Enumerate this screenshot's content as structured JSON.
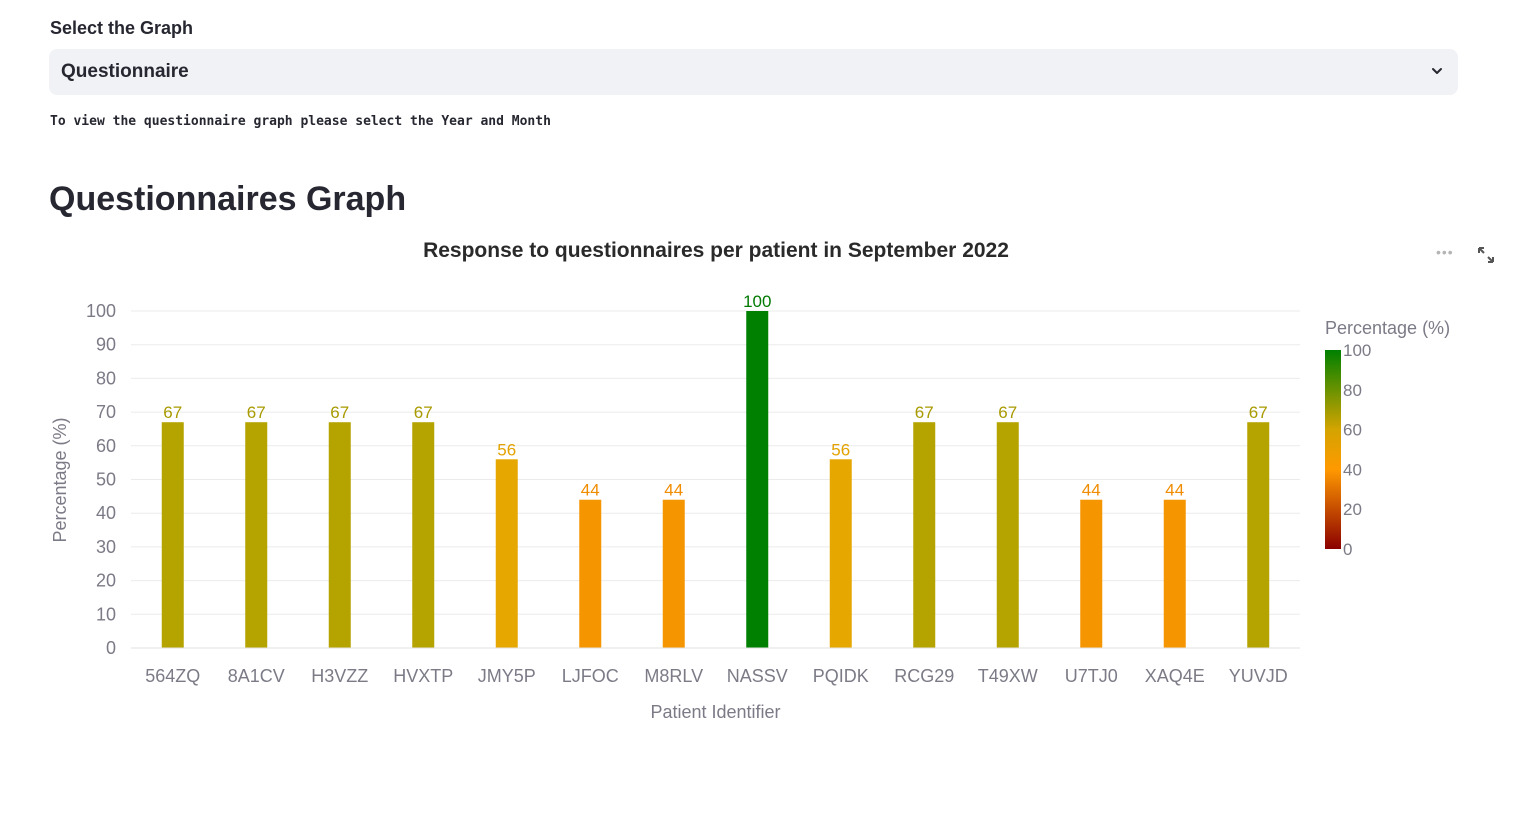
{
  "selector": {
    "label": "Select the Graph",
    "selected": "Questionnaire"
  },
  "info_text": "To view the questionnaire graph please select the Year and Month",
  "section_title": "Questionnaires Graph",
  "icons": {
    "select_chevron": "chevron-down-icon",
    "chart_menu": "more-horizontal-icon",
    "chart_fullscreen": "fullscreen-icon"
  },
  "chart_data": {
    "type": "bar",
    "title": "Response to questionnaires per patient in September 2022",
    "xlabel": "Patient Identifier",
    "ylabel": "Percentage (%)",
    "categories": [
      "564ZQ",
      "8A1CV",
      "H3VZZ",
      "HVXTP",
      "JMY5P",
      "LJFOC",
      "M8RLV",
      "NASSV",
      "PQIDK",
      "RCG29",
      "T49XW",
      "U7TJ0",
      "XAQ4E",
      "YUVJD"
    ],
    "values": [
      67,
      67,
      67,
      67,
      56,
      44,
      44,
      100,
      56,
      67,
      67,
      44,
      44,
      67
    ],
    "data_labels": [
      "67",
      "67",
      "67",
      "67",
      "56",
      "44",
      "44",
      "100",
      "56",
      "67",
      "67",
      "44",
      "44",
      "67"
    ],
    "colors": [
      "#b5a300",
      "#b5a300",
      "#b5a300",
      "#b5a300",
      "#e6a700",
      "#f59600",
      "#f59600",
      "#008000",
      "#e6a700",
      "#b5a300",
      "#b5a300",
      "#f59600",
      "#f59600",
      "#b5a300"
    ],
    "label_colors": [
      "#a89a00",
      "#a89a00",
      "#a89a00",
      "#a89a00",
      "#e3a200",
      "#f08c00",
      "#f08c00",
      "#007a00",
      "#e3a200",
      "#a89a00",
      "#a89a00",
      "#f08c00",
      "#f08c00",
      "#a89a00"
    ],
    "ylim": [
      0,
      100
    ],
    "yticks": [
      0,
      10,
      20,
      30,
      40,
      50,
      60,
      70,
      80,
      90,
      100
    ],
    "grid": true,
    "colorbar": {
      "title": "Percentage (%)",
      "range": [
        0,
        100
      ],
      "ticks": [
        0,
        20,
        40,
        60,
        80,
        100
      ],
      "stops": [
        {
          "value": 0,
          "color": "#8b0000"
        },
        {
          "value": 40,
          "color": "#ff9900"
        },
        {
          "value": 60,
          "color": "#d4a400"
        },
        {
          "value": 100,
          "color": "#008000"
        }
      ]
    }
  }
}
